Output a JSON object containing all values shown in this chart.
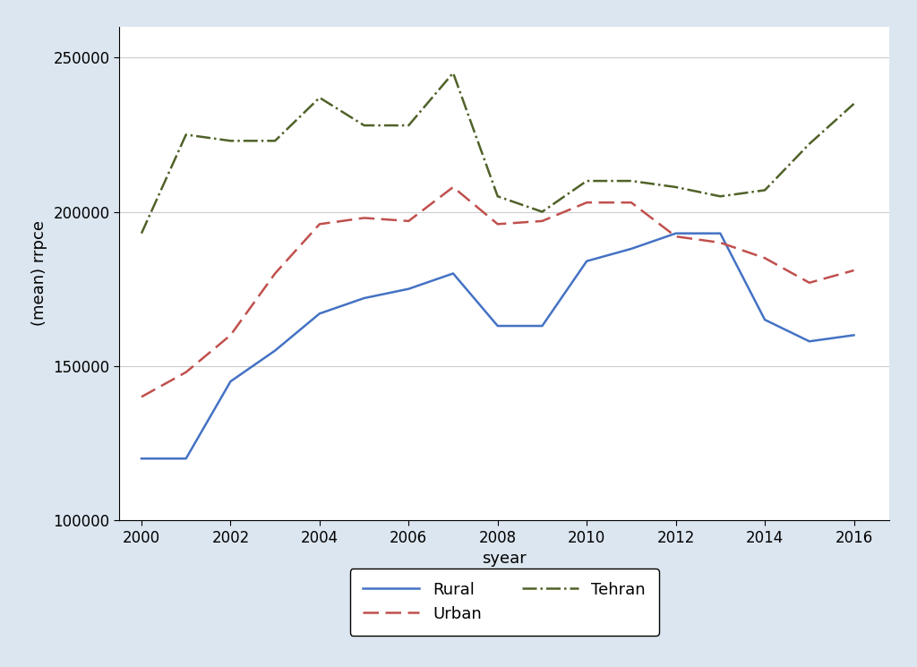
{
  "years": [
    2000,
    2001,
    2002,
    2003,
    2004,
    2005,
    2006,
    2007,
    2008,
    2009,
    2010,
    2011,
    2012,
    2013,
    2014,
    2015,
    2016
  ],
  "rural": [
    120000,
    120000,
    145000,
    155000,
    167000,
    172000,
    175000,
    180000,
    163000,
    163000,
    184000,
    188000,
    193000,
    193000,
    165000,
    158000,
    160000
  ],
  "urban": [
    140000,
    148000,
    160000,
    180000,
    196000,
    198000,
    197000,
    208000,
    196000,
    197000,
    203000,
    203000,
    192000,
    190000,
    185000,
    177000,
    181000
  ],
  "tehran": [
    193000,
    225000,
    223000,
    223000,
    237000,
    228000,
    228000,
    245000,
    205000,
    200000,
    210000,
    210000,
    208000,
    205000,
    207000,
    222000,
    235000
  ],
  "rural_color": "#4472C4",
  "urban_color": "#C0504D",
  "tehran_color": "#4F6228",
  "bg_color": "#dce6f0",
  "plot_bg_color": "#ffffff",
  "xlabel": "syear",
  "ylabel": "(mean) rrpce",
  "ylim": [
    100000,
    260000
  ],
  "yticks": [
    100000,
    150000,
    200000,
    250000
  ],
  "xticks": [
    2000,
    2002,
    2004,
    2006,
    2008,
    2010,
    2012,
    2014,
    2016
  ],
  "legend_labels": [
    "Rural",
    "Urban",
    "Tehran"
  ]
}
